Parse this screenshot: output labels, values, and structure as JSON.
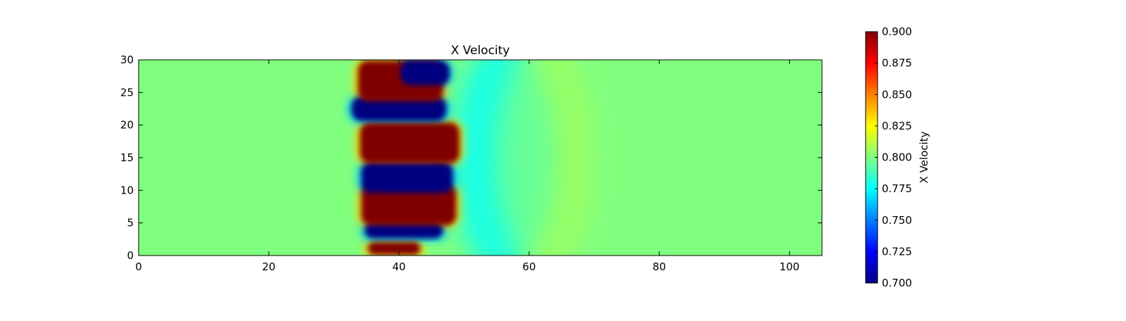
{
  "chart_data": {
    "type": "heatmap",
    "title": "X Velocity",
    "xlabel": "",
    "ylabel": "",
    "xlim": [
      0,
      105
    ],
    "ylim": [
      0,
      30
    ],
    "x_ticks": [
      0,
      20,
      40,
      60,
      80,
      100
    ],
    "y_ticks": [
      0,
      5,
      10,
      15,
      20,
      25,
      30
    ],
    "x_tick_labels": [
      "0",
      "20",
      "40",
      "60",
      "80",
      "100"
    ],
    "y_tick_labels": [
      "0",
      "5",
      "10",
      "15",
      "20",
      "25",
      "30"
    ],
    "colormap": "jet",
    "background_value": 0.8,
    "colorbar": {
      "label": "X Velocity",
      "min": 0.7,
      "max": 0.9,
      "ticks": [
        0.7,
        0.725,
        0.75,
        0.775,
        0.8,
        0.825,
        0.85,
        0.875,
        0.9
      ],
      "tick_labels": [
        "0.700",
        "0.725",
        "0.750",
        "0.775",
        "0.800",
        "0.825",
        "0.850",
        "0.875",
        "0.900"
      ]
    },
    "features": [
      {
        "kind": "high",
        "value": 0.9,
        "x": [
          35.0,
          43.5
        ],
        "y": [
          0.0,
          2.2
        ]
      },
      {
        "kind": "low",
        "value": 0.7,
        "x": [
          34.5,
          47.0
        ],
        "y": [
          2.5,
          5.3
        ]
      },
      {
        "kind": "high",
        "value": 0.9,
        "x": [
          34.0,
          49.0
        ],
        "y": [
          4.5,
          11.0
        ]
      },
      {
        "kind": "low",
        "value": 0.7,
        "x": [
          34.0,
          48.5
        ],
        "y": [
          9.5,
          14.5
        ]
      },
      {
        "kind": "high",
        "value": 0.9,
        "x": [
          33.8,
          49.5
        ],
        "y": [
          14.0,
          20.5
        ]
      },
      {
        "kind": "low",
        "value": 0.7,
        "x": [
          32.5,
          47.5
        ],
        "y": [
          20.5,
          24.5
        ]
      },
      {
        "kind": "high",
        "value": 0.9,
        "x": [
          33.5,
          47.0
        ],
        "y": [
          23.5,
          30.0
        ]
      },
      {
        "kind": "low",
        "value": 0.7,
        "x": [
          40.0,
          48.0
        ],
        "y": [
          26.0,
          30.0
        ]
      },
      {
        "kind": "trough",
        "value": 0.775,
        "x": [
          48.0,
          64.0
        ],
        "y": [
          0.0,
          30.0
        ]
      },
      {
        "kind": "crest",
        "value": 0.81,
        "x": [
          55.0,
          70.0
        ],
        "y": [
          0.0,
          30.0
        ]
      }
    ]
  }
}
